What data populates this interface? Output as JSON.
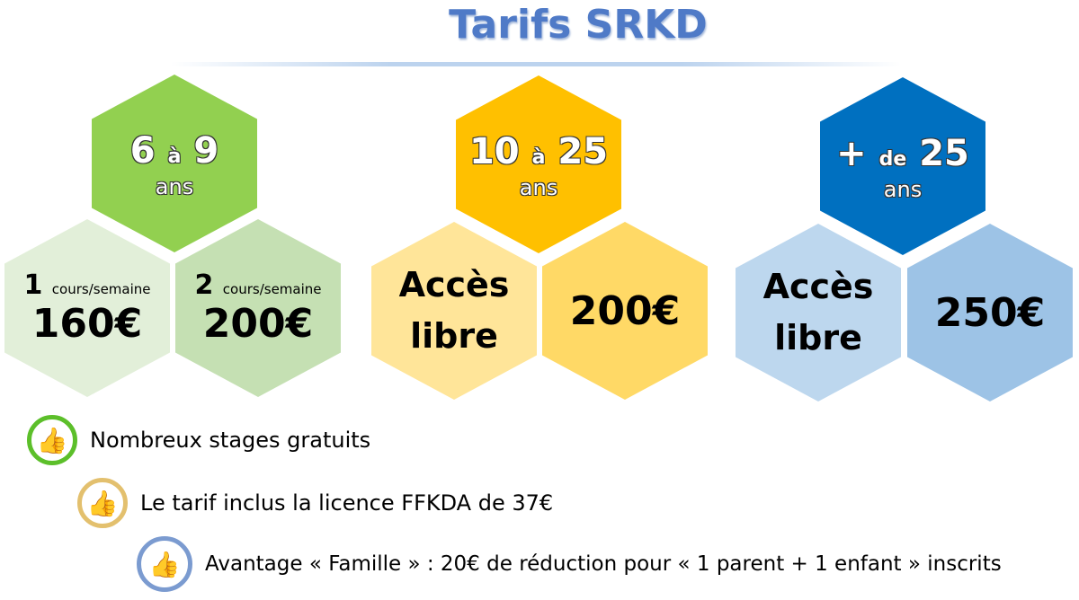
{
  "title": "Tarifs SRKD",
  "groups": [
    {
      "age_from": "6",
      "age_sep": "à",
      "age_to": "9",
      "age_unit": "ans",
      "colors": [
        "#92d050",
        "#e2efd9",
        "#c5e0b3"
      ],
      "options": [
        {
          "count": "1",
          "unit": "cours/semaine",
          "price": "160€"
        },
        {
          "count": "2",
          "unit": "cours/semaine",
          "price": "200€"
        }
      ]
    },
    {
      "age_from": "10",
      "age_sep": "à",
      "age_to": "25",
      "age_unit": "ans",
      "colors": [
        "#ffc000",
        "#ffe599",
        "#ffd966"
      ],
      "access": "Accès libre",
      "price": "200€"
    },
    {
      "age_from": "+",
      "age_sep": "de",
      "age_to": "25",
      "age_unit": "ans",
      "colors": [
        "#0070c0",
        "#bdd7ee",
        "#9dc3e6"
      ],
      "access": "Accès libre",
      "price": "250€"
    }
  ],
  "notes": [
    {
      "icon": "thumbs-up-icon",
      "color": "#5cbf2a",
      "text": "Nombreux stages gratuits"
    },
    {
      "icon": "thumbs-up-icon",
      "color": "#e3c06e",
      "text": "Le tarif inclus la licence FFKDA de 37€"
    },
    {
      "icon": "thumbs-up-icon",
      "color": "#7b9bd0",
      "text": "Avantage « Famille » : 20€ de réduction pour « 1 parent + 1 enfant » inscrits"
    }
  ]
}
